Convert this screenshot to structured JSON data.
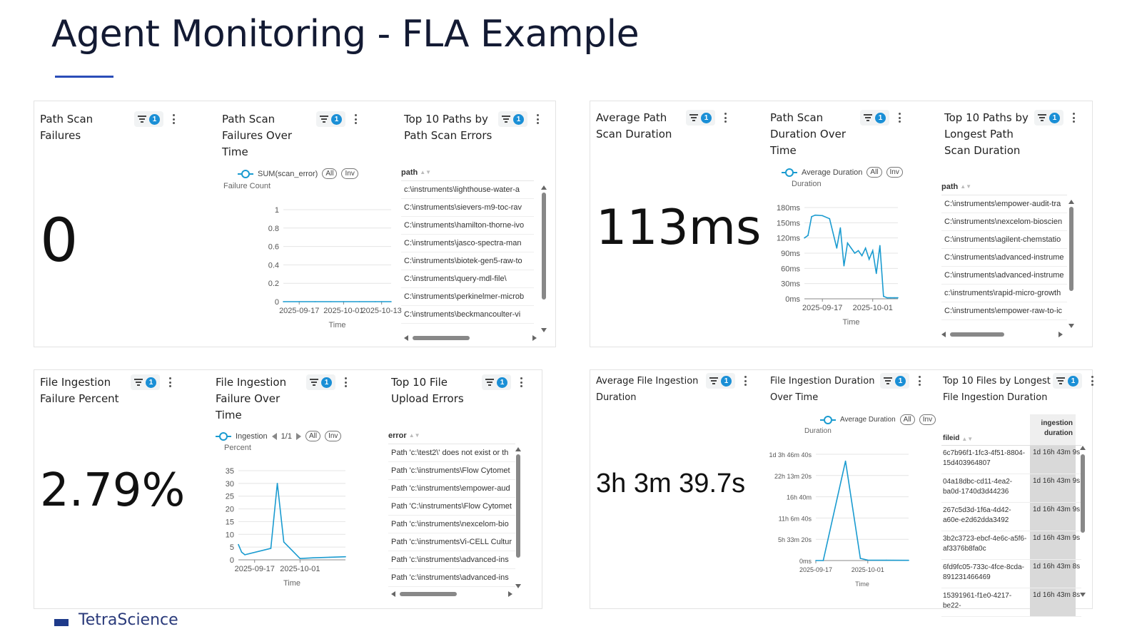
{
  "page": {
    "title": "Agent Monitoring - FLA Example",
    "logo_text": "TetraScience"
  },
  "colors": {
    "accent": "#1a9bd0",
    "badge": "#1a8fd6",
    "title_underline": "#2a4db8"
  },
  "panel1": {
    "tiles": [
      {
        "title": "Path Scan Failures",
        "filter_count": "1",
        "value": "0"
      },
      {
        "title": "Path Scan Failures Over Time",
        "filter_count": "1",
        "legend": "SUM(scan_error)",
        "all_label": "All",
        "inv_label": "Inv",
        "y_title": "Failure Count",
        "x_title": "Time",
        "chart_data": {
          "type": "line",
          "x": [
            "2025-09-12",
            "2025-09-17",
            "2025-09-22",
            "2025-09-27",
            "2025-10-01",
            "2025-10-06",
            "2025-10-11",
            "2025-10-13",
            "2025-10-16"
          ],
          "series": [
            {
              "values": [
                0,
                0,
                0,
                0,
                0,
                0,
                0,
                0,
                0
              ]
            }
          ],
          "x_ticks": [
            "2025-09-17",
            "2025-10-01",
            "2025-10-13"
          ],
          "y_ticks": [
            "0",
            "0.2",
            "0.4",
            "0.6",
            "0.8",
            "1"
          ],
          "ylim": [
            0,
            1
          ]
        }
      },
      {
        "title": "Top 10 Paths by Path Scan Errors",
        "filter_count": "1",
        "column": "path",
        "rows": [
          "c:\\instruments\\lighthouse-water-a",
          "C:\\instruments\\sievers-m9-toc-rav",
          "C:\\instruments\\hamilton-thorne-ivo",
          "C:\\instruments\\jasco-spectra-man",
          "C:\\instruments\\biotek-gen5-raw-to",
          "C:\\instruments\\query-mdl-file\\",
          "C:\\instruments\\perkinelmer-microb",
          "C:\\instruments\\beckmancoulter-vi"
        ]
      }
    ]
  },
  "panel2": {
    "tiles": [
      {
        "title": "Average Path Scan Duration",
        "filter_count": "1",
        "value": "113ms"
      },
      {
        "title": "Path Scan Duration Over Time",
        "filter_count": "1",
        "legend": "Average Duration",
        "all_label": "All",
        "inv_label": "Inv",
        "y_title": "Duration",
        "x_title": "Time",
        "chart_data": {
          "type": "line",
          "x": [
            "2025-09-12",
            "2025-09-13",
            "2025-09-14",
            "2025-09-15",
            "2025-09-17",
            "2025-09-19",
            "2025-09-21",
            "2025-09-22",
            "2025-09-23",
            "2025-09-24",
            "2025-09-25",
            "2025-09-26",
            "2025-09-27",
            "2025-09-28",
            "2025-09-29",
            "2025-09-30",
            "2025-10-01",
            "2025-10-02",
            "2025-10-03",
            "2025-10-04",
            "2025-10-05",
            "2025-10-06",
            "2025-10-07",
            "2025-10-08"
          ],
          "series": [
            {
              "name": "Average Duration",
              "values": [
                120,
                125,
                162,
                165,
                164,
                158,
                100,
                140,
                65,
                110,
                100,
                90,
                95,
                85,
                100,
                78,
                95,
                50,
                105,
                5,
                2,
                2,
                2,
                2
              ]
            }
          ],
          "x_ticks": [
            "2025-09-17",
            "2025-10-01"
          ],
          "y_ticks": [
            "0ms",
            "30ms",
            "60ms",
            "90ms",
            "120ms",
            "150ms",
            "180ms"
          ],
          "ylim": [
            0,
            180
          ],
          "y_unit": "ms"
        }
      },
      {
        "title": "Top 10 Paths by Longest Path Scan Duration",
        "filter_count": "1",
        "column": "path",
        "rows": [
          "C:\\instruments\\empower-audit-tra",
          "C:\\instruments\\nexcelom-bioscien",
          "C:\\instruments\\agilent-chemstatio",
          "C:\\instruments\\advanced-instrume",
          "C:\\instruments\\advanced-instrume",
          "c:\\instruments\\rapid-micro-growth",
          "C:\\instruments\\empower-raw-to-ic"
        ]
      }
    ]
  },
  "panel3": {
    "tiles": [
      {
        "title": "File Ingestion Failure Percent",
        "filter_count": "1",
        "value": "2.79%"
      },
      {
        "title": "File Ingestion Failure Over Time",
        "filter_count": "1",
        "legend": "Ingestion",
        "pager": "1/1",
        "all_label": "All",
        "inv_label": "Inv",
        "y_title": "Percent",
        "x_title": "Time",
        "chart_data": {
          "type": "line",
          "x": [
            "2025-09-12",
            "2025-09-13",
            "2025-09-14",
            "2025-09-22",
            "2025-09-24",
            "2025-09-26",
            "2025-10-01",
            "2025-10-05",
            "2025-10-10",
            "2025-10-15"
          ],
          "series": [
            {
              "name": "Ingestion",
              "values": [
                6,
                3,
                2,
                4.5,
                30,
                7,
                0.5,
                0.8,
                1,
                1.2
              ]
            }
          ],
          "x_ticks": [
            "2025-09-17",
            "2025-10-01"
          ],
          "y_ticks": [
            "0",
            "5",
            "10",
            "15",
            "20",
            "25",
            "30",
            "35"
          ],
          "ylim": [
            0,
            35
          ]
        }
      },
      {
        "title": "Top 10 File Upload Errors",
        "filter_count": "1",
        "column": "error",
        "rows": [
          "Path 'c:\\test2\\' does not exist or th",
          "Path 'c:\\instruments\\Flow Cytomet",
          "Path 'c:\\instruments\\empower-aud",
          "Path 'C:\\instruments\\Flow Cytomet",
          "Path 'c:\\instruments\\nexcelom-bio",
          "Path 'c:\\instrumentsVi-CELL Cultur",
          "Path 'c:\\instruments\\advanced-ins",
          "Path 'c:\\instruments\\advanced-ins"
        ]
      }
    ]
  },
  "panel4": {
    "tiles": [
      {
        "title": "Average File Ingestion Duration",
        "filter_count": "1",
        "value": "3h 3m 39.7s"
      },
      {
        "title": "File Ingestion Duration Over Time",
        "filter_count": "1",
        "legend": "Average Duration",
        "all_label": "All",
        "inv_label": "Inv",
        "y_title": "Duration",
        "x_title": "Time",
        "chart_data": {
          "type": "line",
          "x": [
            "2025-09-17",
            "2025-09-19",
            "2025-09-25",
            "2025-09-29",
            "2025-10-01",
            "2025-10-06",
            "2025-10-12"
          ],
          "series": [
            {
              "name": "Average Duration",
              "values": [
                0,
                0,
                93600,
                2000,
                400,
                300,
                200
              ]
            }
          ],
          "x_ticks": [
            "2025-09-17",
            "2025-10-01"
          ],
          "y_ticks": [
            "0ms",
            "5h 33m 20s",
            "11h 6m 40s",
            "16h 40m",
            "22h 13m 20s",
            "1d 3h 46m 40s"
          ],
          "ylim": [
            0,
            100000
          ],
          "y_unit": "seconds"
        }
      },
      {
        "title": "Top 10 Files by Longest File Ingestion Duration",
        "filter_count": "1",
        "col1": "fileid",
        "col2": "ingestion duration",
        "rows": [
          {
            "id": "6c7b96f1-1fc3-4f51-8804-15d403964807",
            "dur": "1d 16h 43m 9s"
          },
          {
            "id": "04a18dbc-cd11-4ea2-ba0d-1740d3d44236",
            "dur": "1d 16h 43m 9s"
          },
          {
            "id": "267c5d3d-1f6a-4d42-a60e-e2d62dda3492",
            "dur": "1d 16h 43m 9s"
          },
          {
            "id": "3b2c3723-ebcf-4e6c-a5f6-af3376b8fa0c",
            "dur": "1d 16h 43m 9s"
          },
          {
            "id": "6fd9fc05-733c-4fce-8cda-891231466469",
            "dur": "1d 16h 43m 8s"
          },
          {
            "id": "15391961-f1e0-4217-be22-",
            "dur": "1d 16h 43m 8s"
          }
        ]
      }
    ]
  }
}
